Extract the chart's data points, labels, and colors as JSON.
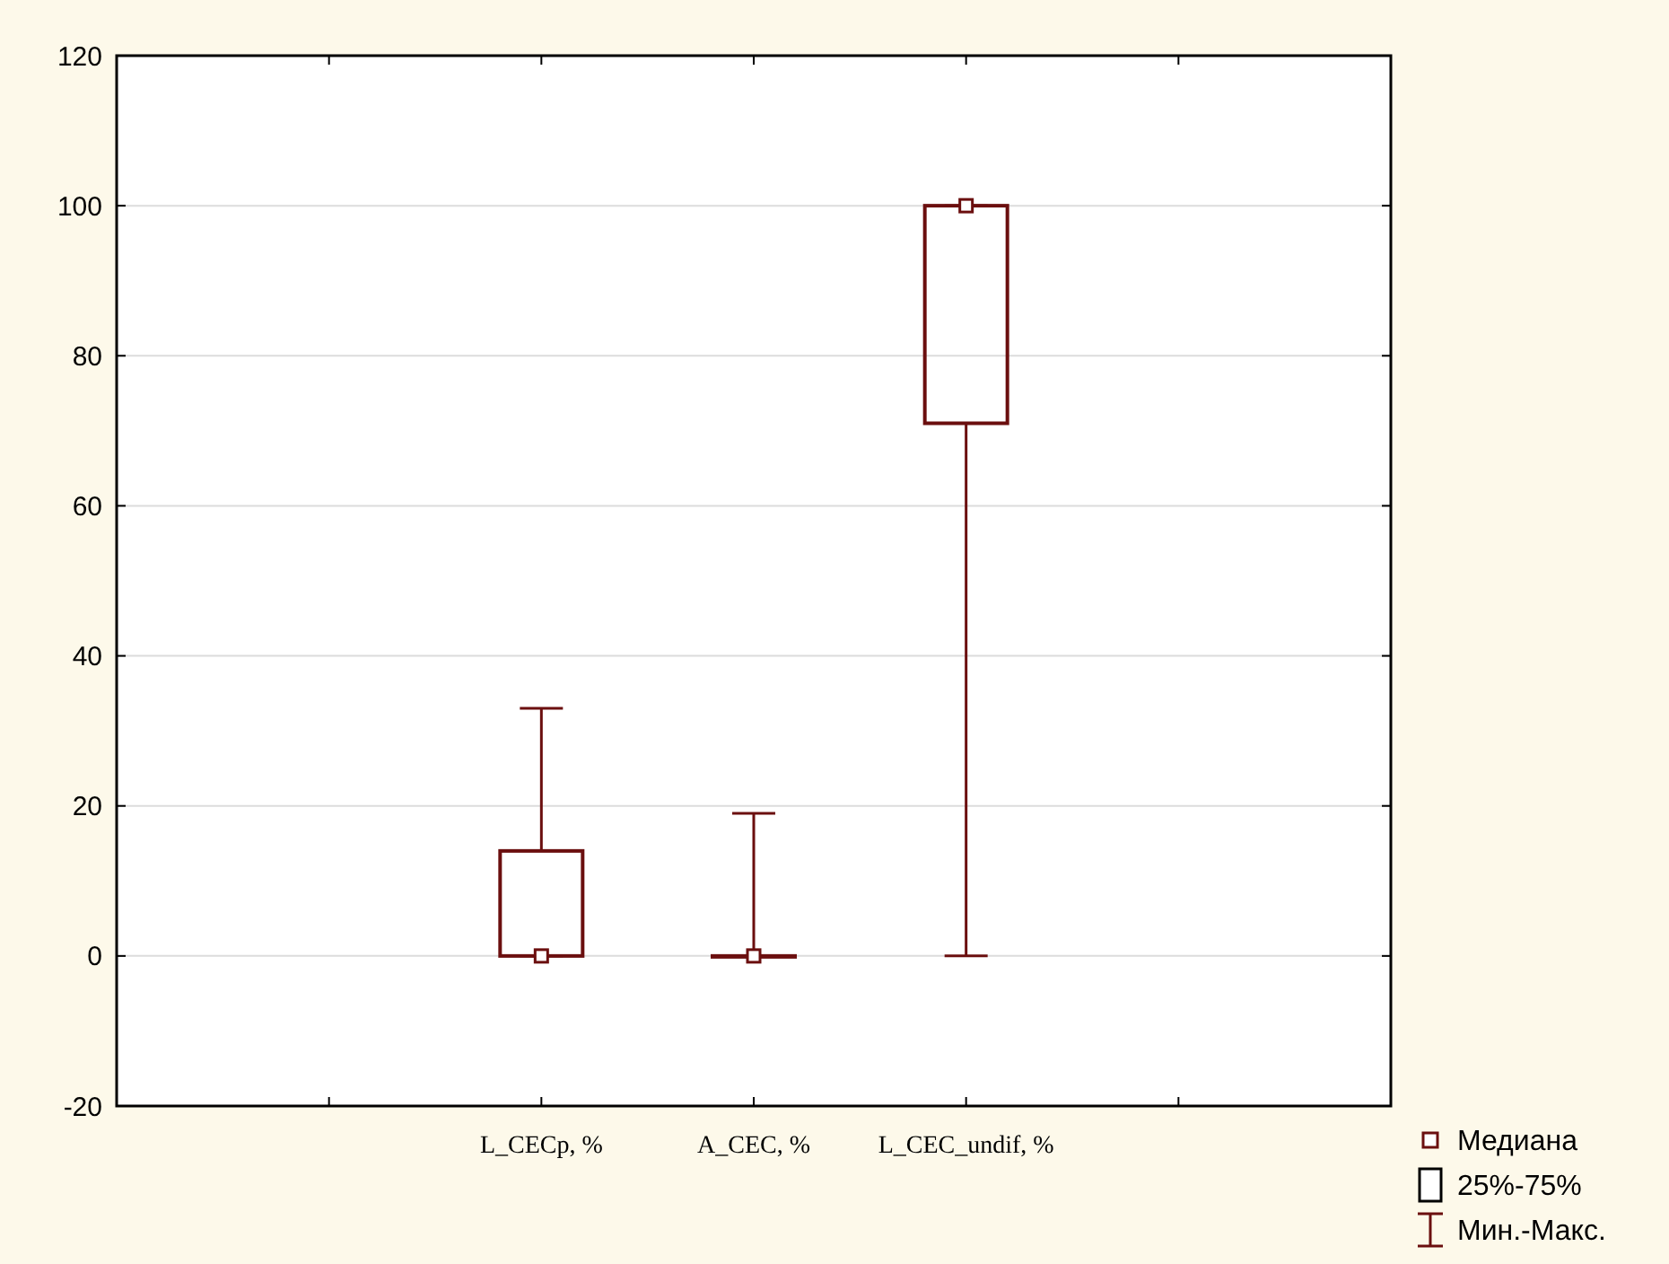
{
  "chart_data": {
    "type": "box",
    "categories": [
      null,
      "L_CECp, %",
      "A_CEC, %",
      "L_CEC_undif, %",
      null
    ],
    "boxes": [
      null,
      {
        "low": 0,
        "q1": 0,
        "median": 0,
        "q3": 14,
        "high": 33
      },
      {
        "low": 0,
        "q1": 0,
        "median": 0,
        "q3": 0,
        "high": 19
      },
      {
        "low": 0,
        "q1": 71,
        "median": 100,
        "q3": 100,
        "high": 100
      },
      null
    ],
    "color": "#6b0f0f",
    "ylim": [
      -20,
      120
    ],
    "yticks": [
      -20,
      0,
      20,
      40,
      60,
      80,
      100,
      120
    ],
    "grid": "y",
    "annotations": [
      "Медиана",
      "25%-75%",
      "Мин.-Макс."
    ]
  }
}
